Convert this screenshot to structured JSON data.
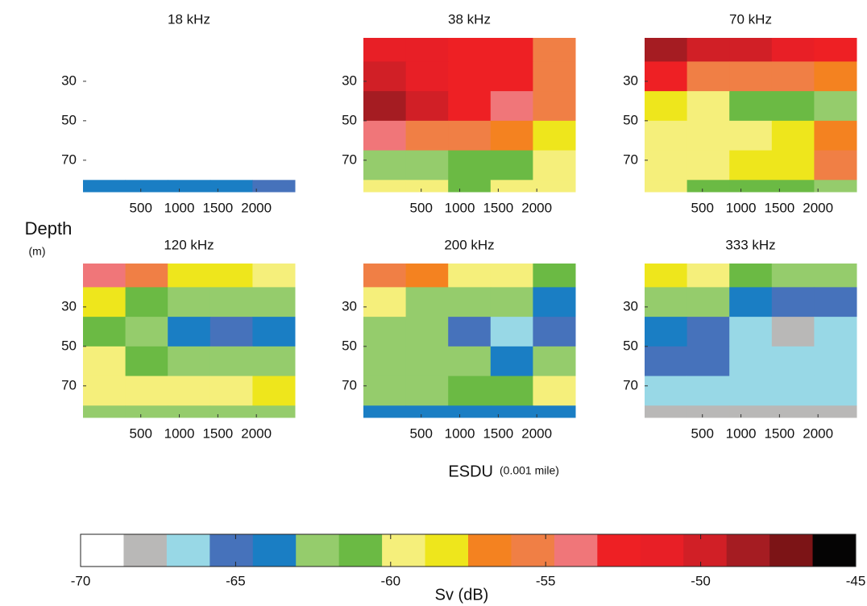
{
  "figure": {
    "ylabel": "Depth",
    "yunit": "(m)",
    "xlabel": "ESDU",
    "xunit": "(0.001 mile)"
  },
  "chart_data": [
    {
      "type": "heatmap",
      "title": "18 kHz",
      "xlim": [
        -250,
        2500
      ],
      "ylim": [
        8,
        86
      ],
      "xticks": [
        500,
        1000,
        1500,
        2000
      ],
      "yticks": [
        30,
        50,
        70
      ],
      "xbins": [
        -250,
        300,
        850,
        1400,
        1950,
        2500
      ],
      "ybins": [
        8,
        20,
        35,
        50,
        65,
        80,
        86
      ],
      "z": [
        [
          -70,
          -70,
          -70,
          -70,
          -70
        ],
        [
          -70,
          -70,
          -70,
          -70,
          -70
        ],
        [
          -70,
          -70,
          -70,
          -70,
          -70
        ],
        [
          -70,
          -70,
          -70,
          -70,
          -70
        ],
        [
          -70,
          -70,
          -70,
          -70,
          -70
        ],
        [
          -64,
          -64,
          -64,
          -64,
          -65
        ]
      ]
    },
    {
      "type": "heatmap",
      "title": "38 kHz",
      "xlim": [
        -250,
        2500
      ],
      "ylim": [
        8,
        86
      ],
      "xticks": [
        500,
        1000,
        1500,
        2000
      ],
      "yticks": [
        30,
        50,
        70
      ],
      "xbins": [
        -250,
        300,
        850,
        1400,
        1950,
        2500
      ],
      "ybins": [
        8,
        20,
        35,
        50,
        65,
        80,
        86
      ],
      "z": [
        [
          -51,
          -51,
          -52,
          -53,
          -55
        ],
        [
          -50,
          -51,
          -52,
          -53,
          -55
        ],
        [
          -48,
          -50,
          -52,
          -54,
          -55
        ],
        [
          -54,
          -55,
          -56,
          -57,
          -58
        ],
        [
          -63,
          -62,
          -61,
          -61,
          -60
        ],
        [
          -60,
          -60,
          -61,
          -60,
          -60
        ]
      ]
    },
    {
      "type": "heatmap",
      "title": "70 kHz",
      "xlim": [
        -250,
        2500
      ],
      "ylim": [
        8,
        86
      ],
      "xticks": [
        500,
        1000,
        1500,
        2000
      ],
      "yticks": [
        30,
        50,
        70
      ],
      "xbins": [
        -250,
        300,
        850,
        1400,
        1950,
        2500
      ],
      "ybins": [
        8,
        20,
        35,
        50,
        65,
        80,
        86
      ],
      "z": [
        [
          -48,
          -50,
          -50,
          -51,
          -52
        ],
        [
          -53,
          -55,
          -56,
          -56,
          -57
        ],
        [
          -58,
          -59,
          -61,
          -61,
          -62
        ],
        [
          -59,
          -59,
          -59,
          -58,
          -57
        ],
        [
          -59,
          -59,
          -58,
          -58,
          -56
        ],
        [
          -60,
          -61,
          -61,
          -61,
          -62
        ]
      ]
    },
    {
      "type": "heatmap",
      "title": "120 kHz",
      "xlim": [
        -250,
        2500
      ],
      "ylim": [
        8,
        86
      ],
      "xticks": [
        500,
        1000,
        1500,
        2000
      ],
      "yticks": [
        30,
        50,
        70
      ],
      "xbins": [
        -250,
        300,
        850,
        1400,
        1950,
        2500
      ],
      "ybins": [
        8,
        20,
        35,
        50,
        65,
        80,
        86
      ],
      "z": [
        [
          -54,
          -56,
          -58,
          -58,
          -59
        ],
        [
          -58,
          -61,
          -62,
          -62,
          -63
        ],
        [
          -61,
          -62,
          -64,
          -65,
          -64
        ],
        [
          -60,
          -61,
          -62,
          -63,
          -62
        ],
        [
          -60,
          -60,
          -59,
          -60,
          -58
        ],
        [
          -62,
          -62,
          -63,
          -63,
          -63
        ]
      ]
    },
    {
      "type": "heatmap",
      "title": "200 kHz",
      "xlim": [
        -250,
        2500
      ],
      "ylim": [
        8,
        86
      ],
      "xticks": [
        500,
        1000,
        1500,
        2000
      ],
      "yticks": [
        30,
        50,
        70
      ],
      "xbins": [
        -250,
        300,
        850,
        1400,
        1950,
        2500
      ],
      "ybins": [
        8,
        20,
        35,
        50,
        65,
        80,
        86
      ],
      "z": [
        [
          -55,
          -57,
          -59,
          -60,
          -61
        ],
        [
          -60,
          -62,
          -63,
          -63,
          -64
        ],
        [
          -62,
          -63,
          -65,
          -66,
          -65
        ],
        [
          -62,
          -63,
          -63,
          -64,
          -63
        ],
        [
          -62,
          -62,
          -61,
          -61,
          -60
        ],
        [
          -64,
          -64,
          -64,
          -64,
          -64
        ]
      ]
    },
    {
      "type": "heatmap",
      "title": "333 kHz",
      "xlim": [
        -250,
        2500
      ],
      "ylim": [
        8,
        86
      ],
      "xticks": [
        500,
        1000,
        1500,
        2000
      ],
      "yticks": [
        30,
        50,
        70
      ],
      "xbins": [
        -250,
        300,
        850,
        1400,
        1950,
        2500
      ],
      "ybins": [
        8,
        20,
        35,
        50,
        65,
        80,
        86
      ],
      "z": [
        [
          -58,
          -60,
          -61,
          -62,
          -63
        ],
        [
          -62,
          -63,
          -64,
          -65,
          -65
        ],
        [
          -64,
          -65,
          -67,
          -68,
          -67
        ],
        [
          -65,
          -65,
          -66,
          -67,
          -66
        ],
        [
          -67,
          -67,
          -67,
          -66,
          -66
        ],
        [
          -68,
          -68,
          -68,
          -68,
          -68
        ]
      ]
    },
    {
      "type": "colorbar",
      "xlabel": "Sv (dB)",
      "xlim": [
        -70,
        -45
      ],
      "xticks": [
        -70,
        -65,
        -60,
        -55,
        -50,
        -45
      ],
      "colors": [
        "#ffffff",
        "#b9b8b7",
        "#98d8e6",
        "#4672bb",
        "#1a7ec4",
        "#95cc6c",
        "#6bba44",
        "#f5ef7b",
        "#eee61c",
        "#f48220",
        "#f07f45",
        "#f07679",
        "#ee2024",
        "#e81f26",
        "#d11f26",
        "#a51c22",
        "#7c1416",
        "#050404"
      ]
    }
  ]
}
